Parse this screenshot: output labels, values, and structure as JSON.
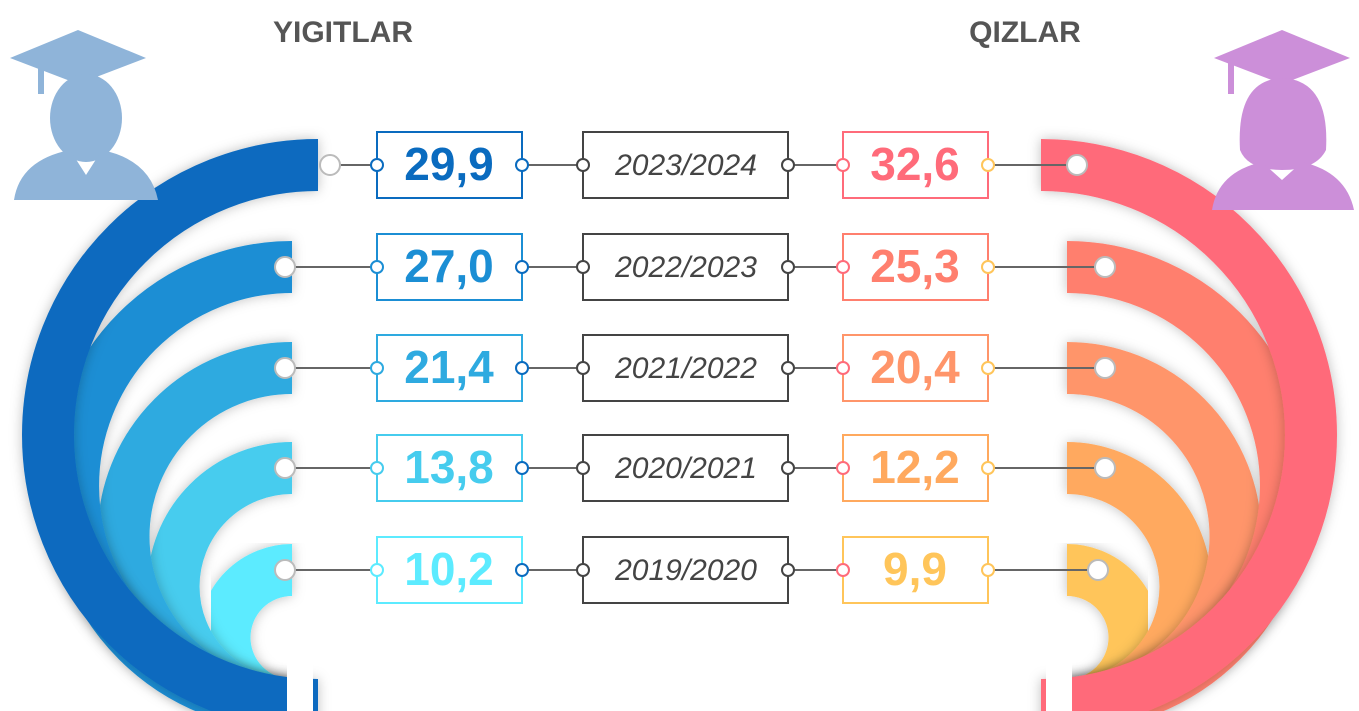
{
  "left": {
    "title": "YIGITLAR"
  },
  "right": {
    "title": "QIZLAR"
  },
  "rows": [
    {
      "year": "2023/2024",
      "left": "29,9",
      "right": "32,6"
    },
    {
      "year": "2022/2023",
      "left": "27,0",
      "right": "25,3"
    },
    {
      "year": "2021/2022",
      "left": "21,4",
      "right": "20,4"
    },
    {
      "year": "2020/2021",
      "left": "13,8",
      "right": "12,2"
    },
    {
      "year": "2019/2020",
      "left": "10,2",
      "right": "9,9"
    }
  ]
}
